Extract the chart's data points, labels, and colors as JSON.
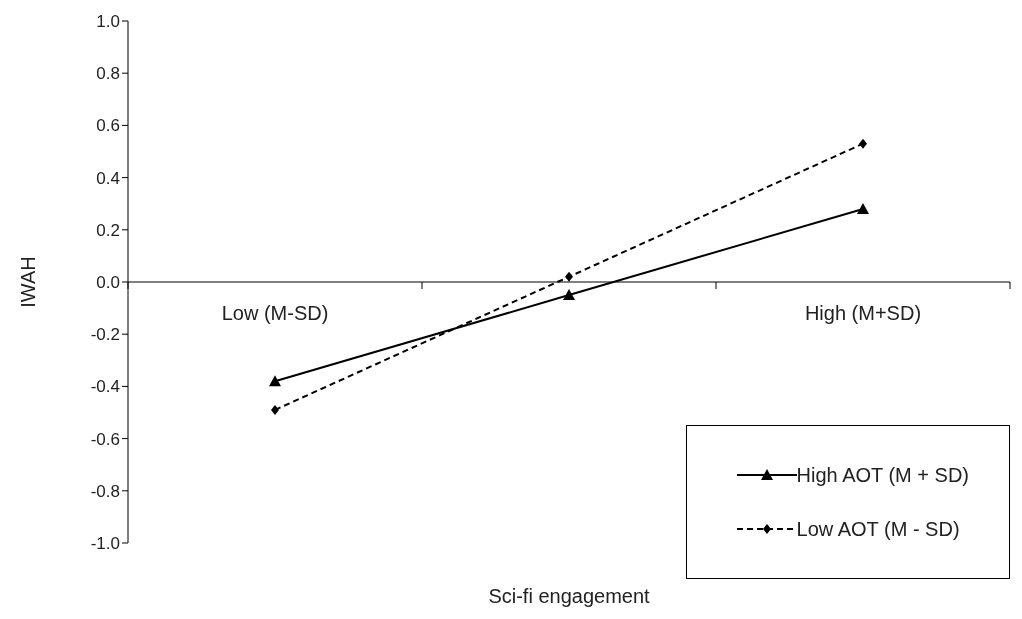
{
  "chart_data": {
    "type": "line",
    "xlabel": "Sci-fi engagement",
    "ylabel": "IWAH",
    "categories": [
      "Low (M-SD)",
      null,
      "High (M+SD)"
    ],
    "series": [
      {
        "name": "High AOT (M + SD)",
        "color": "#000000",
        "values": [
          -0.38,
          -0.05,
          0.28
        ],
        "marker": "triangle",
        "line_style": "solid"
      },
      {
        "name": "Low AOT (M - SD)",
        "color": "#000000",
        "values": [
          -0.49,
          0.02,
          0.53
        ],
        "marker": "diamond",
        "line_style": "dashed"
      }
    ],
    "ylim": [
      -1.0,
      1.0
    ],
    "yticks": [
      {
        "value": -1,
        "label": "-1.0"
      },
      -0.8,
      -0.6,
      -0.4,
      -0.2,
      {
        "value": 0,
        "label": "0.0"
      },
      0.2,
      0.4,
      0.6,
      0.8,
      {
        "value": 1,
        "label": "1.0"
      }
    ],
    "legend": "bottom right"
  }
}
